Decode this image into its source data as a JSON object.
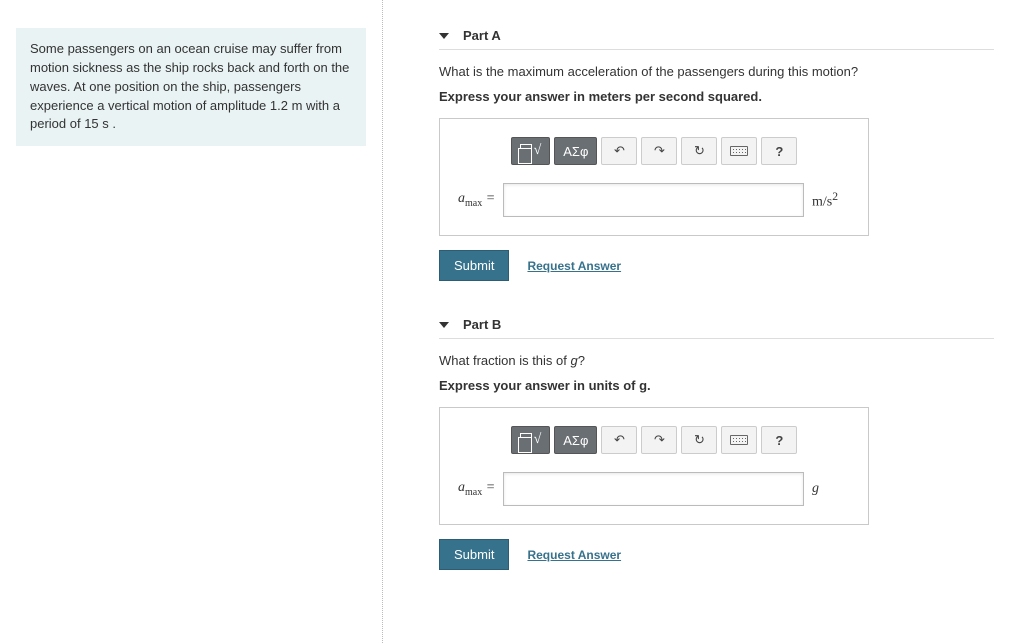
{
  "problem": {
    "text": "Some passengers on an ocean cruise may suffer from motion sickness as the ship rocks back and forth on the waves. At one position on the ship, passengers experience a vertical motion of amplitude 1.2  m with a period of 15  s ."
  },
  "toolbar": {
    "template_label": "",
    "radical_label": "√",
    "greek_label": "ΑΣφ",
    "undo_label": "↶",
    "redo_label": "↷",
    "reset_label": "↻",
    "keyboard_label": "",
    "help_label": "?"
  },
  "actions": {
    "submit_label": "Submit",
    "request_label": "Request Answer"
  },
  "parts": {
    "a": {
      "title": "Part A",
      "question": "What is the maximum acceleration of the passengers during this motion?",
      "instruction": "Express your answer in meters per second squared.",
      "var_symbol": "a",
      "var_sub": "max",
      "equals": " =",
      "value": "",
      "unit_html": "m/s²"
    },
    "b": {
      "title": "Part B",
      "question": "What fraction is this of g?",
      "instruction": "Express your answer in units of g.",
      "var_symbol": "a",
      "var_sub": "max",
      "equals": " =",
      "value": "",
      "unit_html": "g"
    }
  }
}
